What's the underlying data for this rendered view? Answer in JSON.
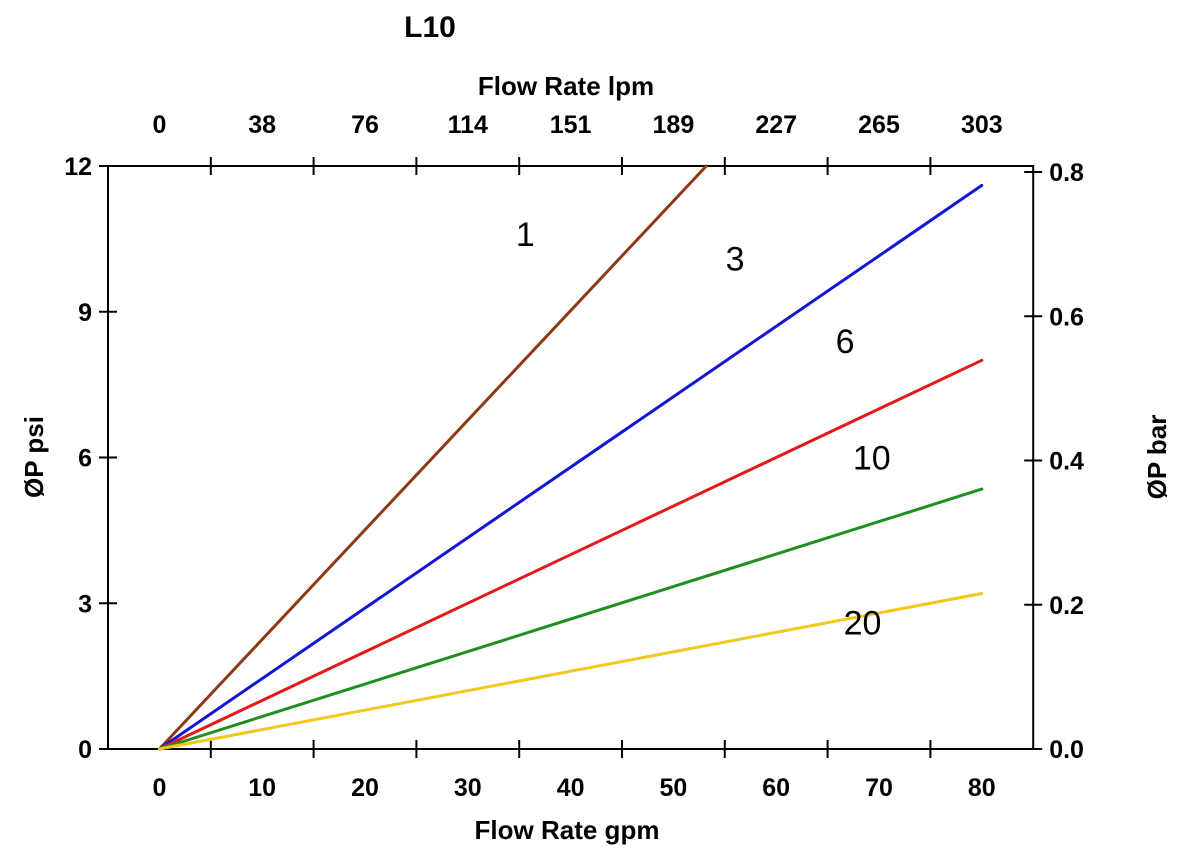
{
  "chart_data": {
    "type": "line",
    "title": "L10",
    "grid": false,
    "legend": "none",
    "background": "#FFFFFF",
    "axis_color": "#000000",
    "xlim_gpm": [
      -5,
      85
    ],
    "ylim_psi": [
      0,
      12
    ],
    "right_ylim_bar": [
      0.0,
      0.8
    ],
    "axes": {
      "top": {
        "label": "Flow Rate lpm",
        "tick_labels": [
          "0",
          "38",
          "76",
          "114",
          "151",
          "189",
          "227",
          "265",
          "303"
        ],
        "label_positions_gpm": [
          0,
          10,
          20,
          30,
          40,
          50,
          60,
          70,
          80
        ],
        "tick_marks_gpm": [
          5,
          15,
          25,
          35,
          45,
          55,
          65,
          75
        ]
      },
      "bottom": {
        "label": "Flow Rate gpm",
        "tick_labels": [
          "0",
          "10",
          "20",
          "30",
          "40",
          "50",
          "60",
          "70",
          "80"
        ],
        "label_positions_gpm": [
          0,
          10,
          20,
          30,
          40,
          50,
          60,
          70,
          80
        ],
        "tick_marks_gpm": [
          5,
          15,
          25,
          35,
          45,
          55,
          65,
          75
        ]
      },
      "left": {
        "label": "ØP psi",
        "tick_labels": [
          "0",
          "3",
          "6",
          "9",
          "12"
        ],
        "tick_values_psi": [
          0,
          3,
          6,
          9,
          12
        ]
      },
      "right": {
        "label": "ØP bar",
        "tick_labels": [
          "0.0",
          "0.2",
          "0.4",
          "0.6",
          "0.8"
        ],
        "tick_values_bar": [
          0.0,
          0.2,
          0.4,
          0.6,
          0.8
        ]
      }
    },
    "series": [
      {
        "name": "1",
        "color": "#8B3A13",
        "points_gpm_psi": [
          [
            0,
            0
          ],
          [
            53.2,
            12.0
          ]
        ],
        "label": "1",
        "label_at_gpm_psi": [
          35.6,
          10.6
        ]
      },
      {
        "name": "3",
        "color": "#1515D6",
        "points_gpm_psi": [
          [
            0,
            0
          ],
          [
            80,
            11.6
          ]
        ],
        "label": "3",
        "label_at_gpm_psi": [
          56.0,
          10.1
        ]
      },
      {
        "name": "6",
        "color": "#E31B1B",
        "points_gpm_psi": [
          [
            0,
            0
          ],
          [
            80,
            8.0
          ]
        ],
        "label": "6",
        "label_at_gpm_psi": [
          66.7,
          8.4
        ]
      },
      {
        "name": "10",
        "color": "#1F8F1F",
        "points_gpm_psi": [
          [
            0,
            0
          ],
          [
            80,
            5.35
          ]
        ],
        "label": "10",
        "label_at_gpm_psi": [
          69.3,
          6.0
        ]
      },
      {
        "name": "20",
        "color": "#F0C81E",
        "points_gpm_psi": [
          [
            0,
            0
          ],
          [
            80,
            3.2
          ]
        ],
        "label": "20",
        "label_at_gpm_psi": [
          68.4,
          2.6
        ]
      }
    ]
  }
}
